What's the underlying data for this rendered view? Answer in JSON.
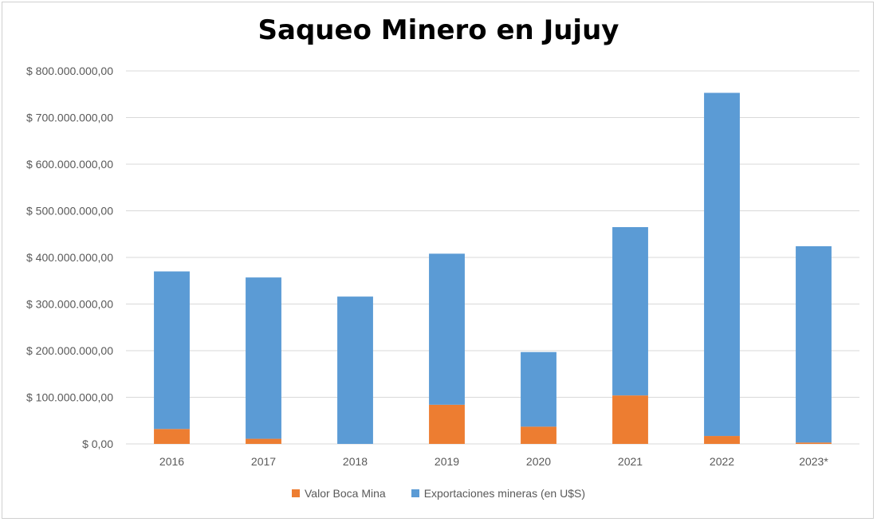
{
  "chart_data": {
    "type": "bar",
    "stacked": true,
    "title": "Saqueo Minero en Jujuy",
    "categories": [
      "2016",
      "2017",
      "2018",
      "2019",
      "2020",
      "2021",
      "2022",
      "2023*"
    ],
    "series": [
      {
        "name": "Valor Boca Mina",
        "color": "#ED7D31",
        "values": [
          32000000,
          11000000,
          0,
          84000000,
          37000000,
          104000000,
          17000000,
          3000000
        ]
      },
      {
        "name": "Exportaciones mineras (en U$S)",
        "color": "#5B9BD5",
        "values": [
          338000000,
          346000000,
          316000000,
          324000000,
          160000000,
          361000000,
          736000000,
          421000000
        ]
      }
    ],
    "ylim": [
      0,
      800000000
    ],
    "yticks": [
      0,
      100000000,
      200000000,
      300000000,
      400000000,
      500000000,
      600000000,
      700000000,
      800000000
    ],
    "ytick_labels": [
      "$ 0,00",
      "$ 100.000.000,00",
      "$ 200.000.000,00",
      "$ 300.000.000,00",
      "$ 400.000.000,00",
      "$ 500.000.000,00",
      "$ 600.000.000,00",
      "$ 700.000.000,00",
      "$ 800.000.000,00"
    ],
    "grid": true,
    "legend_position": "bottom"
  }
}
